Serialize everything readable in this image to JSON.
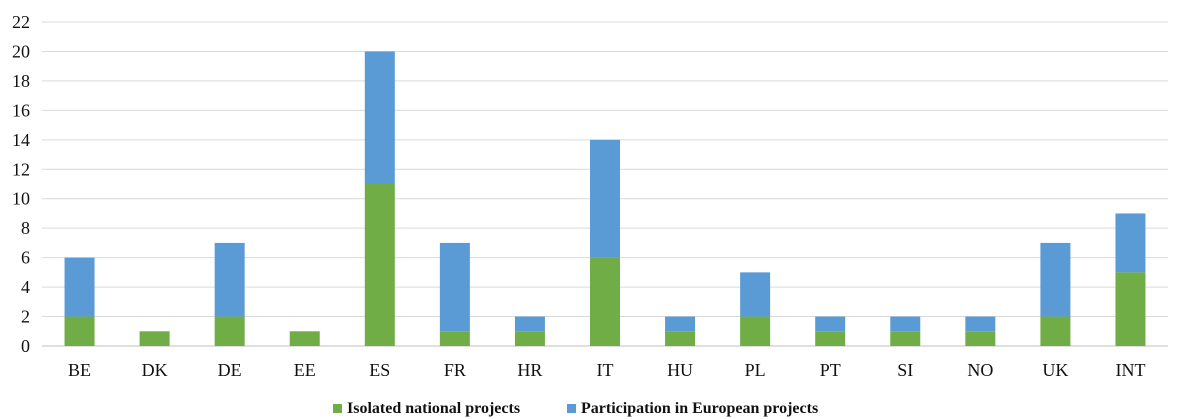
{
  "chart_data": {
    "type": "bar",
    "stacked": true,
    "categories": [
      "BE",
      "DK",
      "DE",
      "EE",
      "ES",
      "FR",
      "HR",
      "IT",
      "HU",
      "PL",
      "PT",
      "SI",
      "NO",
      "UK",
      "INT"
    ],
    "series": [
      {
        "name": "Isolated national projects",
        "color": "#70ad47",
        "values": [
          2,
          1,
          2,
          1,
          11,
          1,
          1,
          6,
          1,
          2,
          1,
          1,
          1,
          2,
          5
        ]
      },
      {
        "name": "Participation in European projects",
        "color": "#5b9bd5",
        "values": [
          4,
          0,
          5,
          0,
          9,
          6,
          1,
          8,
          1,
          3,
          1,
          1,
          1,
          5,
          4
        ]
      }
    ],
    "ylim": [
      0,
      22
    ],
    "yticks": [
      0,
      2,
      4,
      6,
      8,
      10,
      12,
      14,
      16,
      18,
      20,
      22
    ],
    "grid": true,
    "legend_position": "bottom",
    "title": "",
    "xlabel": "",
    "ylabel": ""
  }
}
